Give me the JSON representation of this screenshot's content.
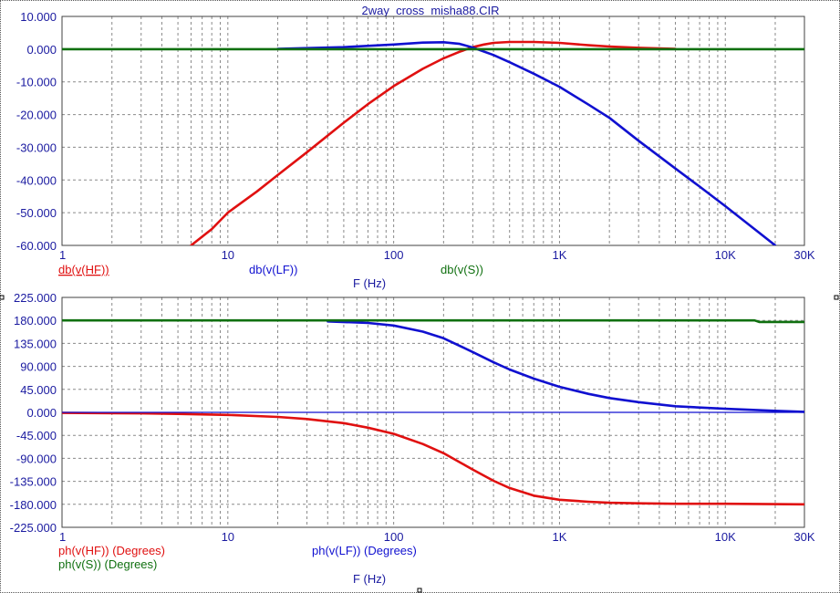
{
  "window": {
    "title": "2way_cross_misha88.CIR"
  },
  "colors": {
    "hf": "#e01010",
    "lf": "#1010d0",
    "sum": "#107010",
    "axis_text": "#1a1aa0"
  },
  "chart_data": [
    {
      "type": "line",
      "title": "2way_cross_misha88.CIR",
      "xlabel": "F (Hz)",
      "x_scale": "log",
      "xlim": [
        1,
        30000
      ],
      "x_ticks": [
        1,
        10,
        100,
        1000,
        10000,
        30000
      ],
      "x_tick_labels": [
        "1",
        "10",
        "100",
        "1K",
        "10K",
        "30K"
      ],
      "ylim": [
        -60,
        10
      ],
      "y_ticks": [
        10,
        0,
        -10,
        -20,
        -30,
        -40,
        -50,
        -60
      ],
      "y_tick_labels": [
        "10.000",
        "0.000",
        "-10.000",
        "-20.000",
        "-30.000",
        "-40.000",
        "-50.000",
        "-60.000"
      ],
      "grid": true,
      "legend": [
        "db(v(HF))",
        "db(v(LF))",
        "db(v(S))"
      ],
      "series": [
        {
          "name": "db(v(HF))",
          "color": "#e01010",
          "x": [
            6,
            8,
            10,
            15,
            20,
            30,
            50,
            70,
            100,
            150,
            200,
            250,
            300,
            350,
            400,
            500,
            700,
            1000,
            1500,
            2000,
            3000,
            5000
          ],
          "y": [
            -60,
            -55,
            -50,
            -43.5,
            -38.5,
            -31.5,
            -22.5,
            -16.8,
            -11.3,
            -6,
            -2.8,
            -0.8,
            0.6,
            1.4,
            1.9,
            2.2,
            2.2,
            1.9,
            1.2,
            0.8,
            0.4,
            0.1
          ]
        },
        {
          "name": "db(v(LF))",
          "color": "#1010d0",
          "x": [
            20,
            50,
            100,
            150,
            200,
            250,
            300,
            400,
            500,
            700,
            1000,
            1500,
            2000,
            3000,
            5000,
            7000,
            10000,
            15000,
            20000
          ],
          "y": [
            0.1,
            0.6,
            1.4,
            2.0,
            2.1,
            1.6,
            0.5,
            -1.8,
            -4,
            -7.5,
            -11.5,
            -17,
            -21,
            -28,
            -36.5,
            -42,
            -48,
            -55,
            -60
          ]
        },
        {
          "name": "db(v(S))",
          "color": "#107010",
          "x": [
            1,
            30000
          ],
          "y": [
            0,
            0
          ]
        }
      ]
    },
    {
      "type": "line",
      "xlabel": "F (Hz)",
      "x_scale": "log",
      "xlim": [
        1,
        30000
      ],
      "x_ticks": [
        1,
        10,
        100,
        1000,
        10000,
        30000
      ],
      "x_tick_labels": [
        "1",
        "10",
        "100",
        "1K",
        "10K",
        "30K"
      ],
      "ylim": [
        -225,
        225
      ],
      "y_ticks": [
        225,
        180,
        135,
        90,
        45,
        0,
        -45,
        -90,
        -135,
        -180,
        -225
      ],
      "y_tick_labels": [
        "225.000",
        "180.000",
        "135.000",
        "90.000",
        "45.000",
        "0.000",
        "-45.000",
        "-90.000",
        "-135.000",
        "-180.000",
        "-225.000"
      ],
      "grid": true,
      "legend": [
        "ph(v(HF)) (Degrees)",
        "ph(v(LF)) (Degrees)",
        "ph(v(S)) (Degrees)"
      ],
      "series": [
        {
          "name": "ph(v(HF)) (Degrees)",
          "color": "#e01010",
          "x": [
            1,
            3,
            5,
            10,
            20,
            30,
            50,
            70,
            100,
            150,
            200,
            300,
            400,
            500,
            700,
            1000,
            1500,
            2000,
            3000,
            5000,
            10000,
            30000
          ],
          "y": [
            -1,
            -2,
            -3,
            -5,
            -9,
            -13,
            -21,
            -30,
            -42,
            -62,
            -80,
            -112,
            -134,
            -148,
            -163,
            -171,
            -175,
            -177,
            -178,
            -179,
            -179,
            -180
          ]
        },
        {
          "name": "ph(v(LF)) (Degrees)",
          "color": "#1010d0",
          "x": [
            40,
            70,
            100,
            150,
            200,
            300,
            400,
            500,
            700,
            1000,
            1500,
            2000,
            3000,
            5000,
            10000,
            20000,
            30000
          ],
          "y": [
            178,
            175,
            170,
            158,
            145,
            118,
            98,
            84,
            66,
            50,
            36,
            28,
            20,
            12,
            7,
            3,
            1
          ]
        },
        {
          "name": "ph(v(S)) (Degrees)",
          "color": "#107010",
          "x": [
            1,
            15000,
            16000,
            30000
          ],
          "y": [
            180,
            180,
            177,
            177
          ]
        },
        {
          "name": "",
          "color": "#1010d0",
          "x": [
            1,
            30000
          ],
          "y": [
            0,
            0
          ]
        }
      ]
    }
  ]
}
